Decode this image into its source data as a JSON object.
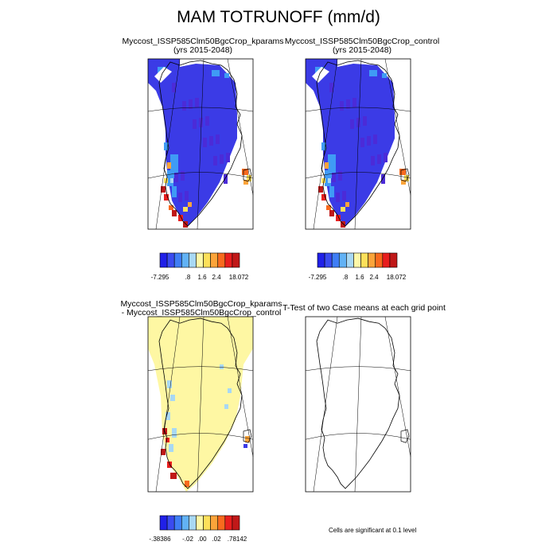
{
  "main_title": "MAM TOTRUNOFF (mm/d)",
  "panels": [
    {
      "id": "kparams",
      "title_line1": "Myccost_ISSP585Clm50BgcCrop_kparams",
      "title_line2": "(yrs 2015-2048)",
      "fill": "dark",
      "colorbar": {
        "colors": [
          "#2020e8",
          "#3a4bf0",
          "#3f7ef5",
          "#62b2f5",
          "#a8d8f4",
          "#fef8a8",
          "#fde05a",
          "#fca43a",
          "#f86a1e",
          "#e81e1e",
          "#c01818"
        ],
        "labels": [
          "-7.295",
          ".8",
          "1.6",
          "2.4",
          "18.072"
        ]
      }
    },
    {
      "id": "control",
      "title_line1": "Myccost_ISSP585Clm50BgcCrop_control",
      "title_line2": "(yrs 2015-2048)",
      "fill": "dark",
      "colorbar": {
        "colors": [
          "#2020e8",
          "#3a4bf0",
          "#3f7ef5",
          "#62b2f5",
          "#a8d8f4",
          "#fef8a8",
          "#fde05a",
          "#fca43a",
          "#f86a1e",
          "#e81e1e",
          "#c01818"
        ],
        "labels": [
          "-7.295",
          ".8",
          "1.6",
          "2.4",
          "18.072"
        ]
      }
    },
    {
      "id": "difference",
      "title_line1": "Myccost_ISSP585Clm50BgcCrop_kparams",
      "title_line2": "- Myccost_ISSP585Clm50BgcCrop_control",
      "fill": "light",
      "colorbar": {
        "colors": [
          "#2020e8",
          "#3a4bf0",
          "#3f7ef5",
          "#62b2f5",
          "#a8d8f4",
          "#fef8a8",
          "#fde05a",
          "#fca43a",
          "#f86a1e",
          "#e81e1e",
          "#c01818"
        ],
        "labels": [
          "-.38386",
          "-.02",
          ".00",
          ".02",
          ".78142"
        ]
      }
    },
    {
      "id": "ttest",
      "title_line1": "T-Test of two Case means at each grid point",
      "title_line2": "",
      "fill": "none",
      "note": "Cells are significant at 0.1 level"
    }
  ],
  "chart_data": [
    {
      "type": "heatmap",
      "title": "Myccost_ISSP585Clm50BgcCrop_kparams (yrs 2015-2048)",
      "variable": "MAM TOTRUNOFF (mm/d)",
      "legend_levels": [
        "-7.295",
        ".8",
        "1.6",
        "2.4",
        "18.072"
      ],
      "dominant_level": "strongly negative (blue) over Greenland interior",
      "coastal_extremes": "red/orange on southwest and southeast coasts"
    },
    {
      "type": "heatmap",
      "title": "Myccost_ISSP585Clm50BgcCrop_control (yrs 2015-2048)",
      "variable": "MAM TOTRUNOFF (mm/d)",
      "legend_levels": [
        "-7.295",
        ".8",
        "1.6",
        "2.4",
        "18.072"
      ],
      "dominant_level": "strongly negative (blue) over Greenland interior",
      "coastal_extremes": "red/orange on southwest and southeast coasts"
    },
    {
      "type": "heatmap",
      "title": "Myccost_ISSP585Clm50BgcCrop_kparams - Myccost_ISSP585Clm50BgcCrop_control",
      "legend_levels": [
        "-.38386",
        "-.02",
        ".00",
        ".02",
        ".78142"
      ],
      "dominant_level": "near zero (pale yellow)",
      "coastal_extremes": "red cells along southwest coast, light blue cells along west coast"
    },
    {
      "type": "heatmap",
      "title": "T-Test of two Case means at each grid point",
      "note": "Cells are significant at 0.1 level",
      "significant_cells": 0
    }
  ]
}
